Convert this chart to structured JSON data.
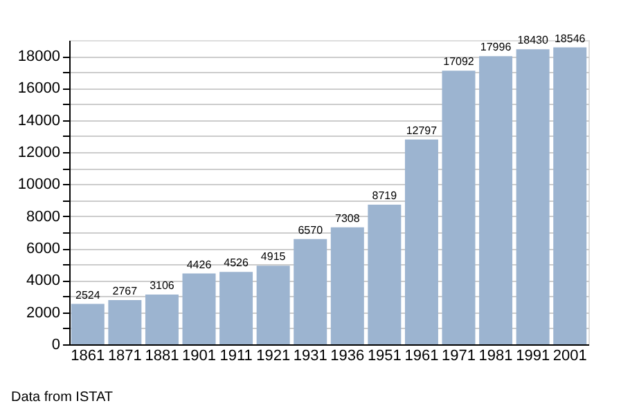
{
  "chart_data": {
    "type": "bar",
    "categories": [
      "1861",
      "1871",
      "1881",
      "1901",
      "1911",
      "1921",
      "1931",
      "1936",
      "1951",
      "1961",
      "1971",
      "1981",
      "1991",
      "2001"
    ],
    "values": [
      2524,
      2767,
      3106,
      4426,
      4526,
      4915,
      6570,
      7308,
      8719,
      12797,
      17092,
      17996,
      18430,
      18546
    ],
    "color": "#9cb4d0",
    "ylim": [
      0,
      19000
    ],
    "yticks": [
      0,
      {
        "value": 1000,
        "label": null
      },
      2000,
      {
        "value": 3000,
        "label": null
      },
      4000,
      {
        "value": 5000,
        "label": null
      },
      6000,
      {
        "value": 7000,
        "label": null
      },
      8000,
      {
        "value": 9000,
        "label": null
      },
      10000,
      {
        "value": 11000,
        "label": null
      },
      12000,
      {
        "value": 13000,
        "label": null
      },
      14000,
      {
        "value": 15000,
        "label": null
      },
      16000,
      {
        "value": 17000,
        "label": null
      },
      18000
    ],
    "grid": "y",
    "data_labels": true,
    "annotations": [
      "Data from ISTAT"
    ]
  }
}
